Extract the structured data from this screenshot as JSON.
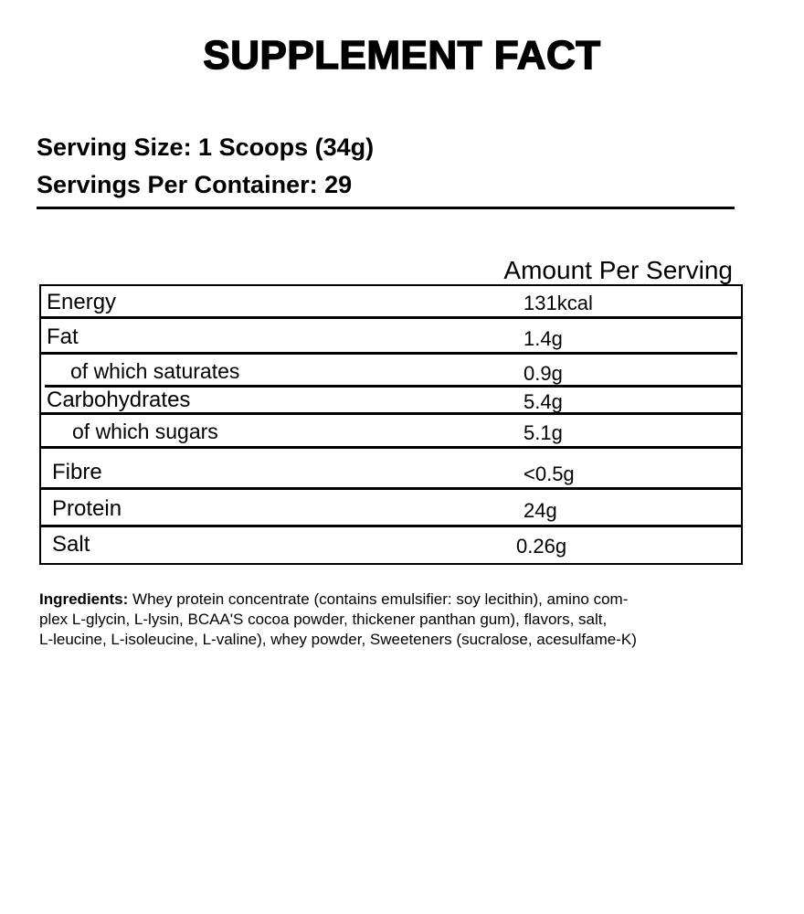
{
  "title": "SUPPLEMENT FACT",
  "serving_size": "Serving Size: 1 Scoops (34g)",
  "servings_per_container": "Servings Per Container: 29",
  "amount_header": "Amount Per Serving",
  "rows": [
    {
      "label": "Energy",
      "value": "131kcal"
    },
    {
      "label": "Fat",
      "value": "1.4g"
    },
    {
      "label": "of which saturates",
      "value": "0.9g"
    },
    {
      "label": "Carbohydrates",
      "value": "5.4g"
    },
    {
      "label": "of which sugars",
      "value": "5.1g"
    },
    {
      "label": "Fibre",
      "value": "<0.5g"
    },
    {
      "label": "Protein",
      "value": "24g"
    },
    {
      "label": "Salt",
      "value": "0.26g"
    }
  ],
  "ingredients": {
    "label": "Ingredients:",
    "lines": [
      " Whey protein concentrate (contains emulsifier: soy lecithin), amino com-",
      "plex L-glycin, L-lysin, BCAA'S cocoa powder, thickener panthan gum), flavors, salt,",
      "L-leucine, L-isoleucine, L-valine), whey powder, Sweeteners (sucralose, acesulfame-K)"
    ]
  }
}
